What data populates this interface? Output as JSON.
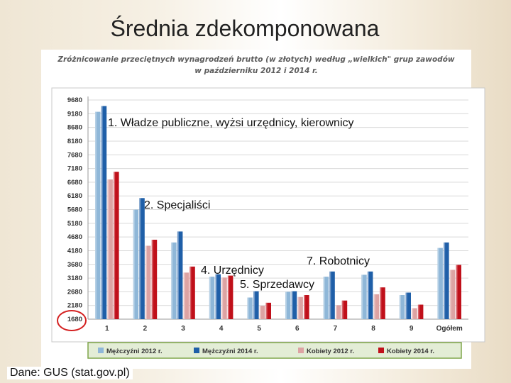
{
  "slide": {
    "title": "Średnia zdekomponowana",
    "source": "Dane: GUS (stat.gov.pl)"
  },
  "chart_data": {
    "type": "bar",
    "title": "Zróżnicowanie przeciętnych wynagrodzeń brutto (w złotych) według „wielkich\" grup zawodów",
    "subtitle": "w październiku 2012 i 2014 r.",
    "categories": [
      "1",
      "2",
      "3",
      "4",
      "5",
      "6",
      "7",
      "8",
      "9",
      "Ogółem"
    ],
    "y_ticks": [
      "1680",
      "2180",
      "2680",
      "3180",
      "3680",
      "4180",
      "4680",
      "5180",
      "5680",
      "6180",
      "6680",
      "7180",
      "7680",
      "8180",
      "8680",
      "9180",
      "9680"
    ],
    "ylim": [
      1680,
      9680
    ],
    "grid": true,
    "legend_position": "bottom",
    "series": [
      {
        "name": "Mężczyźni 2012 r.",
        "color": "#8fb7d8",
        "values": [
          9250,
          5680,
          4480,
          3230,
          2470,
          2680,
          3230,
          3300,
          2560,
          4280
        ]
      },
      {
        "name": "Mężczyźni 2014 r.",
        "color": "#1f5fa8",
        "values": [
          9460,
          6100,
          4880,
          3320,
          2700,
          2700,
          3420,
          3420,
          2650,
          4480
        ]
      },
      {
        "name": "Kobiety 2012 r.",
        "color": "#dda3a3",
        "values": [
          6780,
          4360,
          3380,
          3200,
          2170,
          2490,
          2190,
          2590,
          2080,
          3480
        ]
      },
      {
        "name": "Kobiety 2014 r.",
        "color": "#c0101a",
        "values": [
          7060,
          4580,
          3600,
          3270,
          2280,
          2560,
          2360,
          2840,
          2210,
          3660
        ]
      }
    ],
    "annotations": [
      {
        "text": "1. Władze publiczne, wyżsi urzędnicy, kierownicy"
      },
      {
        "text": "2. Specjaliści"
      },
      {
        "text": "7. Robotnicy"
      },
      {
        "text": "4. Urzędnicy"
      },
      {
        "text": "5. Sprzedawcy"
      }
    ]
  }
}
